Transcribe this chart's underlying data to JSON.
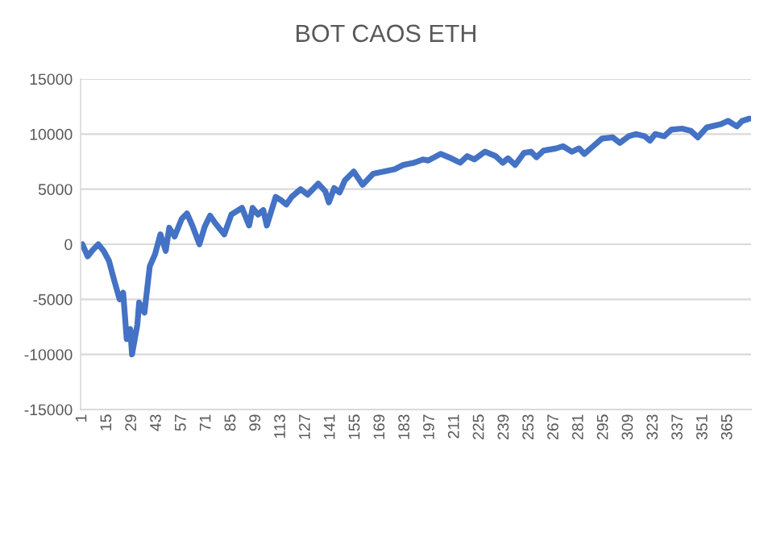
{
  "chart_data": {
    "type": "line",
    "title": "BOT CAOS ETH",
    "x": [
      1,
      4,
      7,
      10,
      13,
      16,
      19,
      22,
      24,
      26,
      28,
      29,
      32,
      33,
      36,
      39,
      42,
      45,
      48,
      50,
      53,
      57,
      60,
      63,
      67,
      70,
      73,
      76,
      81,
      85,
      91,
      95,
      97,
      100,
      103,
      105,
      110,
      113,
      116,
      119,
      124,
      128,
      134,
      138,
      140,
      143,
      146,
      149,
      154,
      159,
      165,
      171,
      177,
      182,
      188,
      193,
      196,
      203,
      209,
      214,
      218,
      222,
      228,
      234,
      238,
      241,
      245,
      250,
      254,
      257,
      261,
      268,
      272,
      277,
      281,
      284,
      289,
      294,
      300,
      304,
      309,
      313,
      318,
      321,
      324,
      329,
      333,
      339,
      344,
      348,
      353,
      361,
      365,
      370,
      373,
      377
    ],
    "series": [
      {
        "color": "#4472c4",
        "values": [
          0,
          -1100,
          -500,
          0,
          -600,
          -1500,
          -3300,
          -5000,
          -4400,
          -8600,
          -7700,
          -10000,
          -7300,
          -5300,
          -6200,
          -2000,
          -900,
          900,
          -600,
          1500,
          700,
          2300,
          2800,
          1700,
          0,
          1600,
          2600,
          1900,
          900,
          2700,
          3300,
          1700,
          3300,
          2700,
          3100,
          1700,
          4300,
          4000,
          3600,
          4300,
          5000,
          4500,
          5500,
          4800,
          3800,
          5100,
          4700,
          5800,
          6600,
          5400,
          6400,
          6600,
          6800,
          7200,
          7400,
          7700,
          7600,
          8200,
          7800,
          7400,
          8000,
          7700,
          8400,
          8000,
          7400,
          7800,
          7200,
          8300,
          8400,
          7900,
          8500,
          8700,
          8900,
          8400,
          8700,
          8200,
          8900,
          9600,
          9700,
          9200,
          9800,
          10000,
          9800,
          9400,
          10000,
          9800,
          10400,
          10500,
          10300,
          9700,
          10600,
          10900,
          11200,
          10700,
          11200,
          11400
        ]
      }
    ],
    "xlim": [
      0,
      378
    ],
    "xticks": [
      1,
      15,
      29,
      43,
      57,
      71,
      85,
      99,
      113,
      127,
      141,
      155,
      169,
      183,
      197,
      211,
      225,
      239,
      253,
      267,
      281,
      295,
      309,
      323,
      337,
      351,
      365
    ],
    "ylim": [
      -15000,
      15000
    ],
    "yticks": [
      -15000,
      -10000,
      -5000,
      0,
      5000,
      10000,
      15000
    ],
    "grid": "y",
    "marker": "none",
    "line_style": "solid"
  }
}
